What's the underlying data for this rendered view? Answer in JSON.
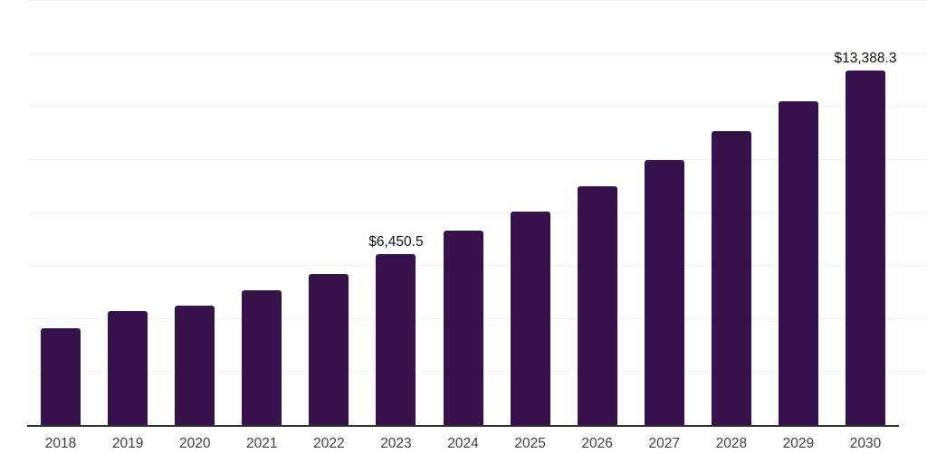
{
  "chart_data": {
    "type": "bar",
    "title": "",
    "xlabel": "",
    "ylabel": "",
    "categories": [
      "2018",
      "2019",
      "2020",
      "2021",
      "2022",
      "2023",
      "2024",
      "2025",
      "2026",
      "2027",
      "2028",
      "2029",
      "2030"
    ],
    "values": [
      3655,
      4295,
      4515,
      5080,
      5715,
      6450.5,
      7325,
      8065,
      8995,
      9985,
      11085,
      12215,
      13388.3
    ],
    "data_labels": {
      "2023": "$6,450.5",
      "2030": "$13,388.3"
    },
    "ylim": [
      0,
      16000
    ],
    "gridline_step": 2000,
    "grid": "horizontal",
    "legend": "none",
    "colors": {
      "bar": "#36124d",
      "gridline": "#f1f1f1",
      "axis": "#303030",
      "tick_label": "#3f3f3f",
      "data_label": "#111111",
      "background": "#ffffff"
    }
  }
}
